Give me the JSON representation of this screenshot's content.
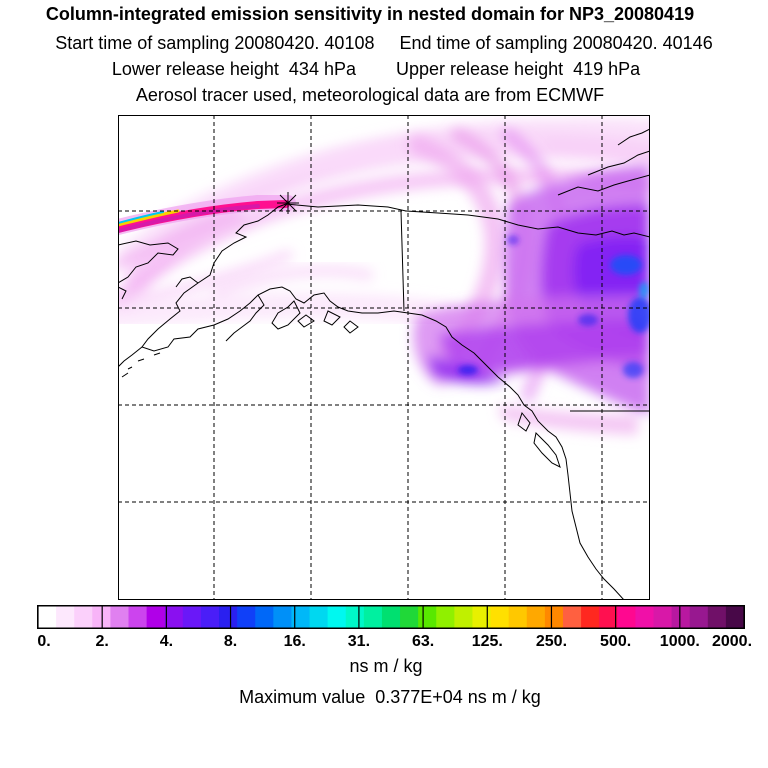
{
  "header": {
    "title": "Column-integrated emission sensitivity in nested domain for NP3_20080419",
    "sampling": "Start time of sampling 20080420. 40108     End time of sampling 20080420. 40146",
    "release": "Lower release height  434 hPa        Upper release height  419 hPa",
    "note": "Aerosol tracer used, meteorological data are from ECMWF"
  },
  "map": {
    "region": "Alaska, Yukon and British Columbia, Pacific Northwest",
    "release_marker": "star-marker"
  },
  "colorbar": {
    "tick_labels": [
      "0.",
      "2.",
      "4.",
      "8.",
      "16.",
      "31.",
      "63.",
      "125.",
      "250.",
      "500.",
      "1000.",
      "2000."
    ],
    "colors": [
      "#ffffff",
      "#fde8fd",
      "#fbd0fb",
      "#f8b4f8",
      "#e080f0",
      "#cc44ee",
      "#b000e8",
      "#8a10f0",
      "#6a18f8",
      "#4a1ef8",
      "#2a20f0",
      "#1040f8",
      "#0068f8",
      "#0090f8",
      "#00b8f8",
      "#00d8f0",
      "#00f8f0",
      "#00f8c8",
      "#00f0a0",
      "#00e070",
      "#20d838",
      "#58e800",
      "#90f000",
      "#c0f000",
      "#e8f000",
      "#ffe000",
      "#ffc800",
      "#ffa800",
      "#ff8800",
      "#ff6040",
      "#ff2820",
      "#ff1050",
      "#ff0890",
      "#f010a8",
      "#d818a8",
      "#b818a0",
      "#981890",
      "#701068",
      "#480848"
    ],
    "unit_label": "ns m / kg",
    "max_value": "Maximum value  0.377E+04 ns m / kg"
  }
}
